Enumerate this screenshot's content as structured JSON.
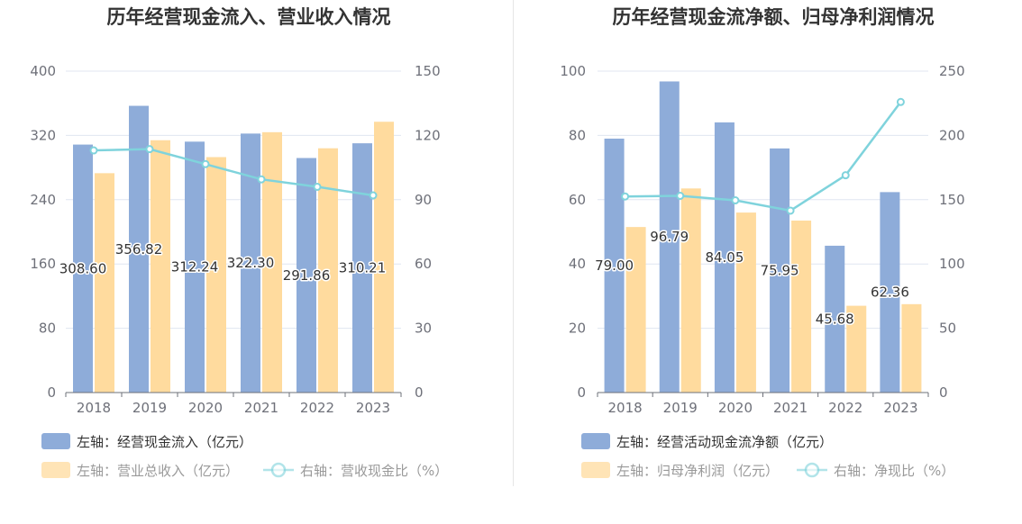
{
  "colors": {
    "bar_primary": "#8eacd9",
    "bar_secondary": "#ffdb9e",
    "line": "#7fd3dc",
    "axis": "#6e7079",
    "grid": "#e0e6f1",
    "legend_text": "#555555"
  },
  "chart_data": [
    {
      "type": "bar",
      "title": "历年经营现金流入、营业收入情况",
      "categories": [
        "2018",
        "2019",
        "2020",
        "2021",
        "2022",
        "2023"
      ],
      "ylim_left": [
        0,
        400
      ],
      "yticks_left": [
        0,
        80,
        160,
        240,
        320,
        400
      ],
      "ylim_right": [
        0,
        150
      ],
      "yticks_right": [
        0,
        30,
        60,
        90,
        120,
        150
      ],
      "grid": true,
      "legend_position": "bottom-left",
      "series": [
        {
          "name": "左轴：经营现金流入（亿元）",
          "type": "bar",
          "axis": "left",
          "values": [
            308.6,
            356.82,
            312.24,
            322.3,
            291.86,
            310.21
          ],
          "labels": [
            "308.60",
            "356.82",
            "312.24",
            "322.30",
            "291.86",
            "310.21"
          ]
        },
        {
          "name": "左轴：营业总收入（亿元）",
          "type": "bar",
          "axis": "left",
          "values": [
            273.0,
            314.0,
            293.0,
            324.0,
            304.0,
            337.0
          ]
        },
        {
          "name": "右轴：营收现金比（%）",
          "type": "line",
          "axis": "right",
          "values": [
            113.0,
            113.6,
            106.6,
            99.5,
            96.0,
            92.0
          ]
        }
      ]
    },
    {
      "type": "bar",
      "title": "历年经营现金流净额、归母净利润情况",
      "categories": [
        "2018",
        "2019",
        "2020",
        "2021",
        "2022",
        "2023"
      ],
      "ylim_left": [
        0,
        100
      ],
      "yticks_left": [
        0,
        20,
        40,
        60,
        80,
        100
      ],
      "ylim_right": [
        0,
        250
      ],
      "yticks_right": [
        0,
        50,
        100,
        150,
        200,
        250
      ],
      "grid": true,
      "legend_position": "bottom-left",
      "series": [
        {
          "name": "左轴：经营活动现金流净额（亿元）",
          "type": "bar",
          "axis": "left",
          "values": [
            79.0,
            96.79,
            84.05,
            75.95,
            45.68,
            62.36
          ],
          "labels": [
            "79.00",
            "96.79",
            "84.05",
            "75.95",
            "45.68",
            "62.36"
          ]
        },
        {
          "name": "左轴：归母净利润（亿元）",
          "type": "bar",
          "axis": "left",
          "values": [
            51.5,
            63.5,
            56.0,
            53.5,
            27.0,
            27.5
          ]
        },
        {
          "name": "右轴：净现比（%）",
          "type": "line",
          "axis": "right",
          "values": [
            152.5,
            153.0,
            149.5,
            141.5,
            169.0,
            226.0
          ]
        }
      ]
    }
  ]
}
